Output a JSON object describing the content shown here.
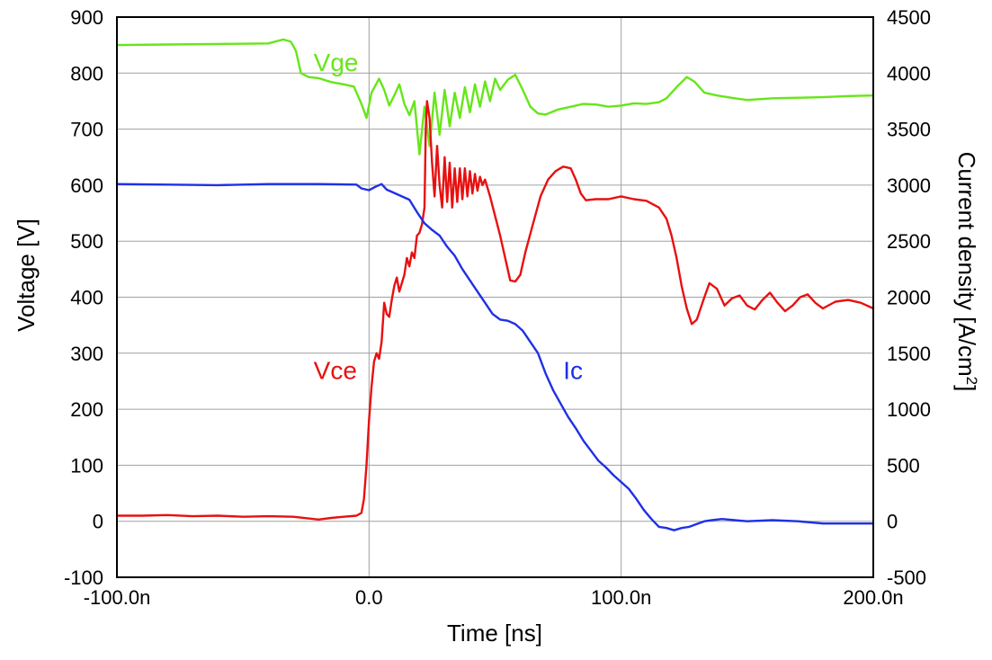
{
  "chart_data": {
    "type": "line",
    "xlabel": "Time [ns]",
    "ylabel": "Voltage [V]",
    "y2label_main": "Current density [A/cm",
    "y2label_sup": "2",
    "y2label_end": "]",
    "xlim": [
      -100,
      200
    ],
    "ylim": [
      -100,
      900
    ],
    "y2lim": [
      -500,
      4500
    ],
    "grid": true,
    "x_ticks": [
      -100,
      0,
      100,
      200
    ],
    "x_tick_labels": [
      "-100.0n",
      "0.0",
      "100.0n",
      "200.0n"
    ],
    "y_ticks": [
      -100,
      0,
      100,
      200,
      300,
      400,
      500,
      600,
      700,
      800,
      900
    ],
    "y_tick_labels": [
      "-100",
      "0",
      "100",
      "200",
      "300",
      "400",
      "500",
      "600",
      "700",
      "800",
      "900"
    ],
    "y2_ticks": [
      -500,
      0,
      500,
      1000,
      1500,
      2000,
      2500,
      3000,
      3500,
      4000,
      4500
    ],
    "y2_tick_labels": [
      "-500",
      "0",
      "500",
      "1000",
      "1500",
      "2000",
      "2500",
      "3000",
      "3500",
      "4000",
      "4500"
    ],
    "series": [
      {
        "name": "Vge",
        "color": "#66e619",
        "axis": "left",
        "label_at": [
          -22,
          820
        ],
        "points": [
          [
            -100,
            850
          ],
          [
            -80,
            851
          ],
          [
            -60,
            852
          ],
          [
            -40,
            853
          ],
          [
            -34,
            860
          ],
          [
            -31,
            856
          ],
          [
            -29,
            840
          ],
          [
            -27,
            800
          ],
          [
            -24,
            793
          ],
          [
            -20,
            791
          ],
          [
            -15,
            784
          ],
          [
            -10,
            780
          ],
          [
            -6,
            776
          ],
          [
            -3,
            745
          ],
          [
            -1,
            720
          ],
          [
            1,
            765
          ],
          [
            4,
            790
          ],
          [
            6,
            770
          ],
          [
            8,
            742
          ],
          [
            10,
            760
          ],
          [
            12,
            780
          ],
          [
            14,
            745
          ],
          [
            16,
            725
          ],
          [
            18,
            750
          ],
          [
            20,
            655
          ],
          [
            22,
            740
          ],
          [
            24,
            670
          ],
          [
            26,
            765
          ],
          [
            28,
            690
          ],
          [
            30,
            770
          ],
          [
            32,
            705
          ],
          [
            34,
            765
          ],
          [
            36,
            720
          ],
          [
            38,
            775
          ],
          [
            40,
            730
          ],
          [
            42,
            780
          ],
          [
            44,
            740
          ],
          [
            46,
            785
          ],
          [
            48,
            750
          ],
          [
            50,
            790
          ],
          [
            52,
            770
          ],
          [
            55,
            788
          ],
          [
            58,
            797
          ],
          [
            61,
            770
          ],
          [
            64,
            740
          ],
          [
            67,
            728
          ],
          [
            70,
            726
          ],
          [
            75,
            735
          ],
          [
            80,
            740
          ],
          [
            85,
            745
          ],
          [
            90,
            744
          ],
          [
            95,
            740
          ],
          [
            100,
            742
          ],
          [
            105,
            746
          ],
          [
            110,
            745
          ],
          [
            115,
            748
          ],
          [
            118,
            755
          ],
          [
            122,
            775
          ],
          [
            126,
            793
          ],
          [
            129,
            785
          ],
          [
            133,
            765
          ],
          [
            138,
            760
          ],
          [
            145,
            755
          ],
          [
            150,
            752
          ],
          [
            160,
            755
          ],
          [
            170,
            756
          ],
          [
            180,
            757
          ],
          [
            190,
            759
          ],
          [
            200,
            760
          ]
        ]
      },
      {
        "name": "Vce",
        "color": "#e81010",
        "axis": "left",
        "label_at": [
          -22,
          270
        ],
        "points": [
          [
            -100,
            10
          ],
          [
            -90,
            10
          ],
          [
            -80,
            11
          ],
          [
            -70,
            9
          ],
          [
            -60,
            10
          ],
          [
            -50,
            8
          ],
          [
            -40,
            9
          ],
          [
            -30,
            8
          ],
          [
            -20,
            3
          ],
          [
            -15,
            6
          ],
          [
            -10,
            8
          ],
          [
            -5,
            10
          ],
          [
            -3,
            15
          ],
          [
            -2,
            40
          ],
          [
            -1,
            100
          ],
          [
            0,
            180
          ],
          [
            1,
            240
          ],
          [
            2,
            285
          ],
          [
            3,
            300
          ],
          [
            4,
            290
          ],
          [
            5,
            320
          ],
          [
            6,
            390
          ],
          [
            7,
            370
          ],
          [
            8,
            365
          ],
          [
            9,
            395
          ],
          [
            10,
            420
          ],
          [
            11,
            435
          ],
          [
            12,
            410
          ],
          [
            13,
            425
          ],
          [
            14,
            440
          ],
          [
            15,
            470
          ],
          [
            16,
            455
          ],
          [
            17,
            480
          ],
          [
            18,
            470
          ],
          [
            19,
            510
          ],
          [
            20,
            515
          ],
          [
            21,
            530
          ],
          [
            22,
            560
          ],
          [
            22.5,
            700
          ],
          [
            23,
            750
          ],
          [
            24,
            720
          ],
          [
            25,
            640
          ],
          [
            26,
            580
          ],
          [
            27,
            670
          ],
          [
            28,
            600
          ],
          [
            29,
            560
          ],
          [
            30,
            650
          ],
          [
            31,
            570
          ],
          [
            32,
            640
          ],
          [
            33,
            560
          ],
          [
            34,
            630
          ],
          [
            35,
            570
          ],
          [
            36,
            630
          ],
          [
            37,
            575
          ],
          [
            38,
            630
          ],
          [
            39,
            580
          ],
          [
            40,
            625
          ],
          [
            41,
            585
          ],
          [
            42,
            620
          ],
          [
            43,
            590
          ],
          [
            44,
            615
          ],
          [
            45,
            600
          ],
          [
            46,
            610
          ],
          [
            48,
            580
          ],
          [
            50,
            545
          ],
          [
            52,
            510
          ],
          [
            54,
            470
          ],
          [
            56,
            430
          ],
          [
            58,
            428
          ],
          [
            60,
            440
          ],
          [
            62,
            480
          ],
          [
            65,
            530
          ],
          [
            68,
            580
          ],
          [
            71,
            610
          ],
          [
            74,
            625
          ],
          [
            77,
            633
          ],
          [
            80,
            630
          ],
          [
            82,
            610
          ],
          [
            84,
            585
          ],
          [
            86,
            573
          ],
          [
            90,
            575
          ],
          [
            95,
            575
          ],
          [
            100,
            580
          ],
          [
            105,
            575
          ],
          [
            110,
            572
          ],
          [
            115,
            560
          ],
          [
            118,
            540
          ],
          [
            120,
            510
          ],
          [
            122,
            470
          ],
          [
            124,
            420
          ],
          [
            126,
            380
          ],
          [
            128,
            352
          ],
          [
            130,
            360
          ],
          [
            133,
            400
          ],
          [
            135,
            425
          ],
          [
            138,
            415
          ],
          [
            141,
            385
          ],
          [
            144,
            398
          ],
          [
            147,
            403
          ],
          [
            150,
            385
          ],
          [
            153,
            378
          ],
          [
            156,
            395
          ],
          [
            159,
            408
          ],
          [
            162,
            390
          ],
          [
            165,
            375
          ],
          [
            168,
            385
          ],
          [
            171,
            400
          ],
          [
            174,
            405
          ],
          [
            177,
            390
          ],
          [
            180,
            380
          ],
          [
            185,
            392
          ],
          [
            190,
            395
          ],
          [
            195,
            390
          ],
          [
            200,
            380
          ]
        ]
      },
      {
        "name": "Ic",
        "color": "#1f30e6",
        "axis": "right",
        "label_at": [
          77,
          1350
        ],
        "points": [
          [
            -100,
            3010
          ],
          [
            -80,
            3005
          ],
          [
            -60,
            3000
          ],
          [
            -40,
            3010
          ],
          [
            -20,
            3010
          ],
          [
            -5,
            3005
          ],
          [
            -3,
            2970
          ],
          [
            0,
            2955
          ],
          [
            3,
            2990
          ],
          [
            5,
            3010
          ],
          [
            7,
            2960
          ],
          [
            10,
            2930
          ],
          [
            13,
            2900
          ],
          [
            16,
            2870
          ],
          [
            19,
            2760
          ],
          [
            22,
            2660
          ],
          [
            25,
            2600
          ],
          [
            28,
            2550
          ],
          [
            31,
            2450
          ],
          [
            34,
            2370
          ],
          [
            37,
            2250
          ],
          [
            40,
            2150
          ],
          [
            43,
            2050
          ],
          [
            46,
            1950
          ],
          [
            49,
            1850
          ],
          [
            52,
            1800
          ],
          [
            55,
            1790
          ],
          [
            58,
            1760
          ],
          [
            61,
            1700
          ],
          [
            64,
            1600
          ],
          [
            67,
            1500
          ],
          [
            70,
            1320
          ],
          [
            73,
            1170
          ],
          [
            76,
            1050
          ],
          [
            79,
            930
          ],
          [
            82,
            830
          ],
          [
            85,
            720
          ],
          [
            88,
            630
          ],
          [
            91,
            540
          ],
          [
            94,
            480
          ],
          [
            97,
            410
          ],
          [
            100,
            350
          ],
          [
            103,
            290
          ],
          [
            106,
            200
          ],
          [
            109,
            100
          ],
          [
            112,
            20
          ],
          [
            115,
            -50
          ],
          [
            118,
            -60
          ],
          [
            121,
            -80
          ],
          [
            124,
            -60
          ],
          [
            127,
            -50
          ],
          [
            130,
            -25
          ],
          [
            133,
            0
          ],
          [
            136,
            10
          ],
          [
            140,
            20
          ],
          [
            145,
            10
          ],
          [
            150,
            0
          ],
          [
            160,
            10
          ],
          [
            170,
            0
          ],
          [
            180,
            -20
          ],
          [
            190,
            -20
          ],
          [
            200,
            -20
          ]
        ]
      }
    ]
  }
}
